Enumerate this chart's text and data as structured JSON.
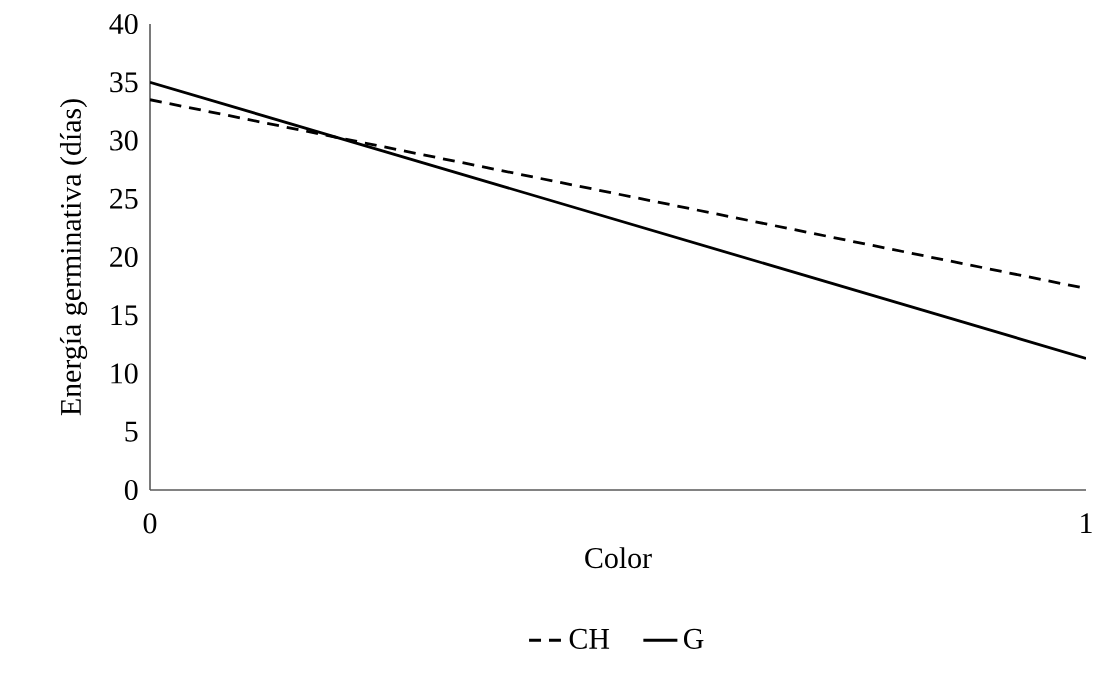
{
  "chart_data": {
    "type": "line",
    "xlabel": "Color",
    "ylabel": "Energía germinativa (días)",
    "x": [
      0,
      1
    ],
    "series": [
      {
        "name": "CH",
        "color": "#000000",
        "line_style": "dashed",
        "values": [
          33.5,
          17.3
        ]
      },
      {
        "name": "G",
        "color": "#000000",
        "line_style": "solid",
        "values": [
          35.0,
          11.3
        ]
      }
    ],
    "xlim": [
      0,
      1
    ],
    "xticks": [
      0,
      1
    ],
    "ylim": [
      0,
      40
    ],
    "yticks": [
      0,
      5,
      10,
      15,
      20,
      25,
      30,
      35,
      40
    ],
    "legend": "bottom",
    "grid": false,
    "marker": "none"
  }
}
